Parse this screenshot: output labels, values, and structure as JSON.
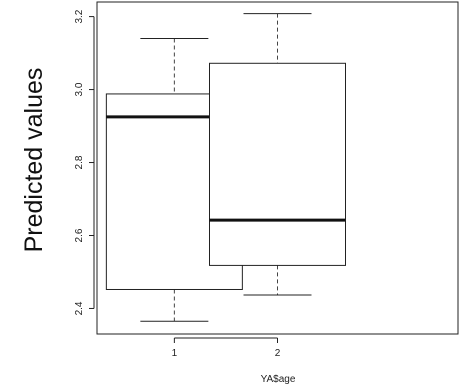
{
  "chart_data": {
    "type": "box",
    "xlabel": "YA$age",
    "ylabel": "Predicted values",
    "categories": [
      "1",
      "2"
    ],
    "ylim": [
      2.33,
      3.24
    ],
    "y_ticks": [
      2.4,
      2.6,
      2.8,
      3.0,
      3.2
    ],
    "y_tick_labels": [
      "2.4",
      "2.6",
      "2.8",
      "3.0",
      "3.2"
    ],
    "boxes": [
      {
        "category": "1",
        "whisker_low": 2.365,
        "q1": 2.452,
        "median": 2.925,
        "q3": 2.988,
        "whisker_high": 3.14
      },
      {
        "category": "2",
        "whisker_low": 2.437,
        "q1": 2.518,
        "median": 2.642,
        "q3": 3.072,
        "whisker_high": 3.208
      }
    ],
    "grid": false,
    "legend": "none"
  }
}
